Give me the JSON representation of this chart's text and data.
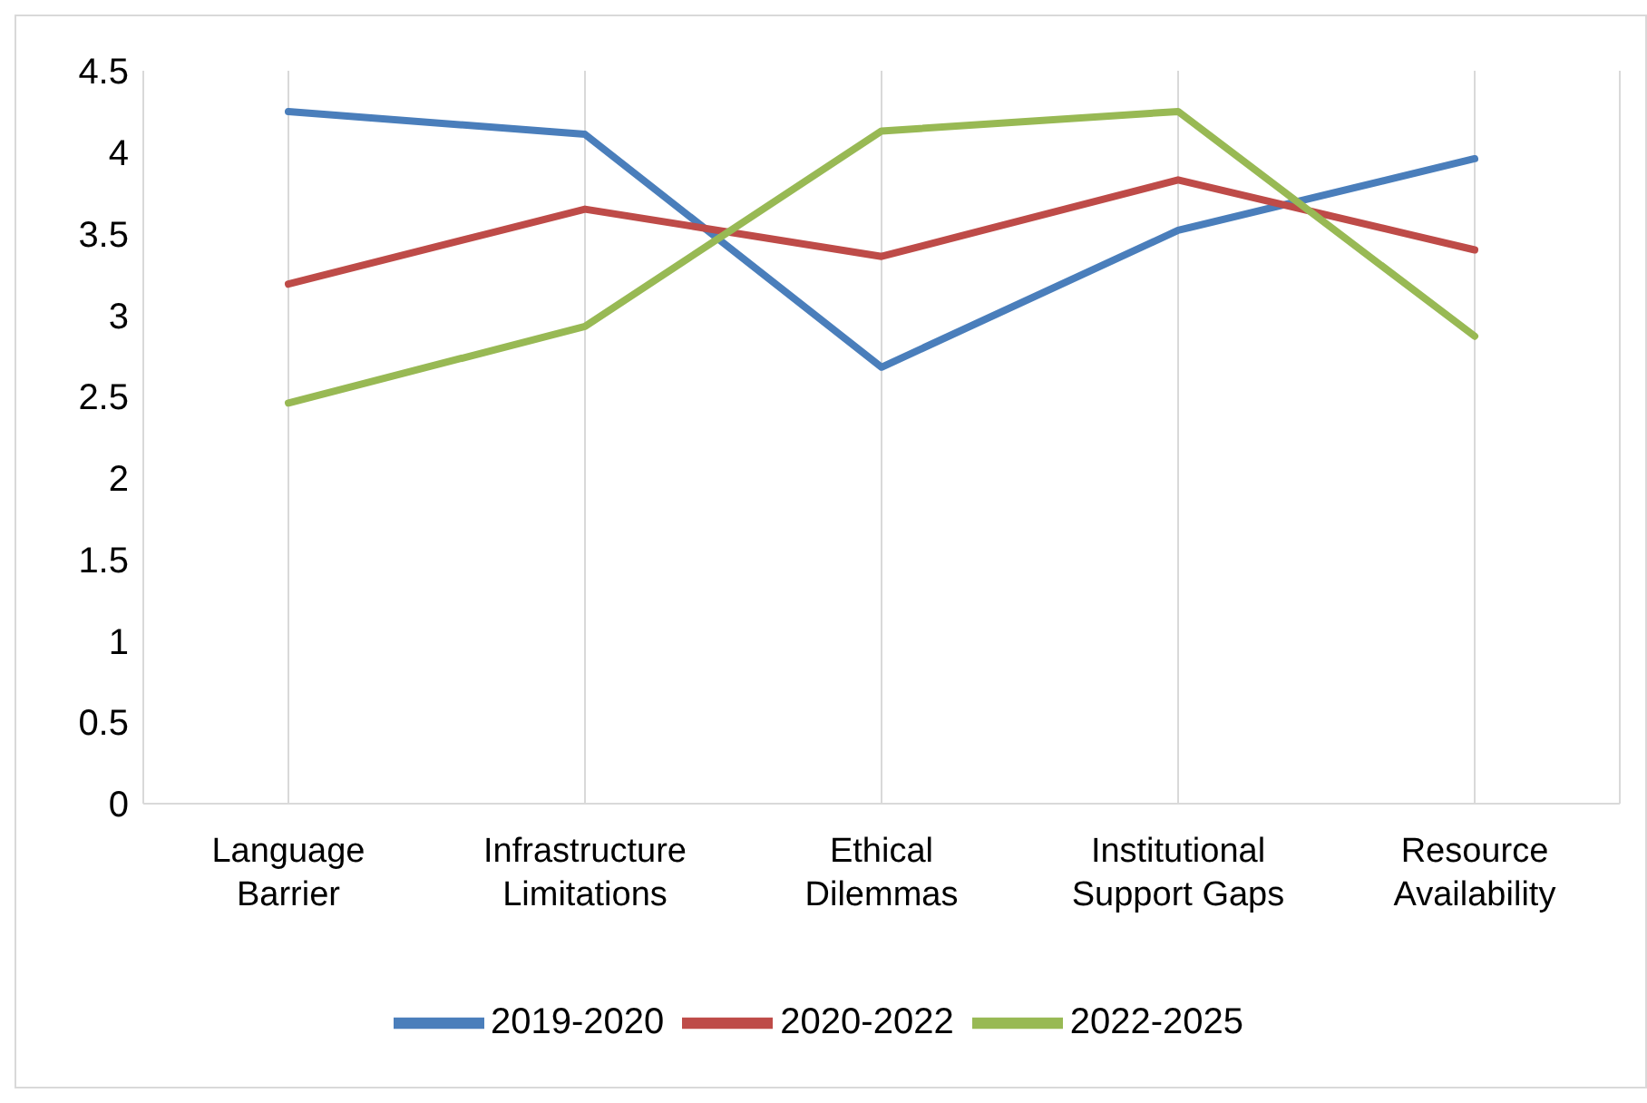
{
  "chart_data": {
    "type": "line",
    "categories": [
      "Language Barrier",
      "Infrastructure Limitations",
      "Ethical Dilemmas",
      "Institutional Support Gaps",
      "Resource Availability"
    ],
    "series": [
      {
        "name": "2019-2020",
        "color": "#4a7ebb",
        "values": [
          4.25,
          4.11,
          2.68,
          3.52,
          3.96
        ]
      },
      {
        "name": "2020-2022",
        "color": "#be4b48",
        "values": [
          3.19,
          3.65,
          3.36,
          3.83,
          3.4
        ]
      },
      {
        "name": "2022-2025",
        "color": "#98b954",
        "values": [
          2.46,
          2.93,
          4.13,
          4.25,
          2.87
        ]
      }
    ],
    "ylim": [
      0,
      4.5
    ],
    "yticks": [
      0,
      0.5,
      1,
      1.5,
      2,
      2.5,
      3,
      3.5,
      4,
      4.5
    ],
    "grid": "x",
    "legend": "bottom",
    "marker": "none",
    "line_style": "solid"
  }
}
